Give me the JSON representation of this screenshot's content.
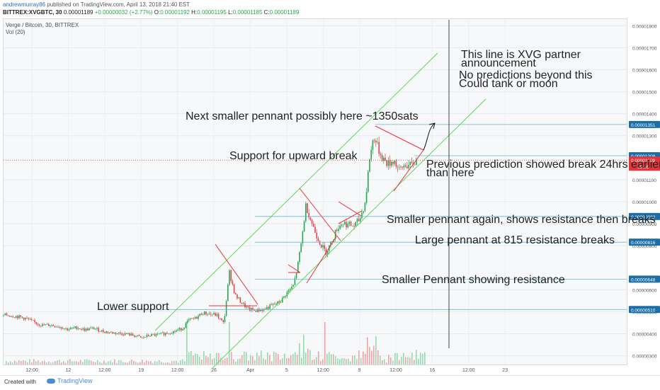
{
  "header": {
    "author": "andrewmurray86",
    "published": "published on TradingView.com, April 13, 2018 21:40 EST",
    "symbol": "BITTREX:XVGBTC, 30",
    "last": "0.00001189",
    "change": "+0.00000032 (+2.77%)",
    "o_label": "O:",
    "o": "0.00001192",
    "h_label": "H:",
    "h": "0.00001195",
    "l_label": "L:",
    "l": "0.00001185",
    "c_label": "C:",
    "c": "0.00001189"
  },
  "legend": {
    "series": "Verge / Bitcoin, 30, BITTREX",
    "volume": "Vol (20)"
  },
  "footer": {
    "created_with": "Created with",
    "brand": "TradingView"
  },
  "colors": {
    "up": "#26a84f",
    "down": "#e0464b",
    "channel": "#56d34a",
    "pennant": "#e8333a",
    "hline": "#68b8cf",
    "price_line": "#e8333a",
    "axis_label_bg": "#1b6ea8"
  },
  "annotations": [
    {
      "id": "partner",
      "text": "This line is XVG partner",
      "size": 12
    },
    {
      "id": "partner2",
      "text": "announcement",
      "size": 12
    },
    {
      "id": "nopred",
      "text": "No predictions beyond this",
      "size": 12
    },
    {
      "id": "nopred2",
      "text": "Could tank or moon",
      "size": 12
    },
    {
      "id": "next",
      "text": "Next smaller pennant possibly here ~1350sats",
      "size": 12
    },
    {
      "id": "support",
      "text": "Support for upward break",
      "size": 12
    },
    {
      "id": "prev",
      "text": "Previous prediction showed break 24hrs earlier",
      "size": 12
    },
    {
      "id": "prev2",
      "text": "than here",
      "size": 12
    },
    {
      "id": "smaller",
      "text": "Smaller pennant again, shows resistance then breaks",
      "size": 12
    },
    {
      "id": "large",
      "text": "Large pennant at 815 resistance breaks",
      "size": 12
    },
    {
      "id": "smallerres",
      "text": "Smaller Pennant showing resistance",
      "size": 12
    },
    {
      "id": "lower",
      "text": "Lower support",
      "size": 12
    }
  ],
  "chart_data": {
    "type": "candlestick",
    "title": "Verge / Bitcoin, 30, BITTREX",
    "ylim": [
      2.6e-06,
      1.83e-05
    ],
    "y_ticks": [
      "0.00001800",
      "0.00001700",
      "0.00001600",
      "0.00001500",
      "0.00001400",
      "0.00001300",
      "0.00001100",
      "0.00001000",
      "0.00000900",
      "0.00000800",
      "0.00000600",
      "0.00000500",
      "0.00000400",
      "0.00000300"
    ],
    "x_ticks": [
      "12:00",
      "12",
      "12:00",
      "19",
      "12:00",
      "26",
      "Apr",
      "5",
      "12:00",
      "9",
      "12:00",
      "16",
      "12:00",
      "23"
    ],
    "price_path": [
      [
        0,
        4.85e-06
      ],
      [
        12,
        4.84e-06
      ],
      [
        24,
        4.78e-06
      ],
      [
        36,
        4.7e-06
      ],
      [
        48,
        4.52e-06
      ],
      [
        60,
        4.38e-06
      ],
      [
        72,
        4.4e-06
      ],
      [
        84,
        4.32e-06
      ],
      [
        96,
        4.2e-06
      ],
      [
        108,
        4.28e-06
      ],
      [
        120,
        4.18e-06
      ],
      [
        132,
        4.25e-06
      ],
      [
        144,
        4.12e-06
      ],
      [
        156,
        4.05e-06
      ],
      [
        168,
        4.02e-06
      ],
      [
        180,
        3.98e-06
      ],
      [
        192,
        3.9e-06
      ],
      [
        200,
        3.8e-06
      ],
      [
        210,
        3.92e-06
      ],
      [
        222,
        3.95e-06
      ],
      [
        234,
        4.02e-06
      ],
      [
        246,
        4.1e-06
      ],
      [
        258,
        4.25e-06
      ],
      [
        266,
        4.6e-06
      ],
      [
        276,
        4.7e-06
      ],
      [
        286,
        4.95e-06
      ],
      [
        296,
        4.9e-06
      ],
      [
        306,
        4.85e-06
      ],
      [
        316,
        4.45e-06
      ],
      [
        324,
        6.8e-06
      ],
      [
        332,
        5.75e-06
      ],
      [
        340,
        5.45e-06
      ],
      [
        350,
        5.12e-06
      ],
      [
        360,
        5.05e-06
      ],
      [
        372,
        5.1e-06
      ],
      [
        384,
        5.28e-06
      ],
      [
        396,
        5.45e-06
      ],
      [
        406,
        5.9e-06
      ],
      [
        414,
        6.15e-06
      ],
      [
        420,
        7e-06
      ],
      [
        426,
        8.25e-06
      ],
      [
        432,
        9.85e-06
      ],
      [
        438,
        9.25e-06
      ],
      [
        446,
        8.55e-06
      ],
      [
        454,
        8e-06
      ],
      [
        460,
        7.7e-06
      ],
      [
        468,
        8.15e-06
      ],
      [
        476,
        8.8e-06
      ],
      [
        484,
        9.05e-06
      ],
      [
        492,
        8.95e-06
      ],
      [
        500,
        8.9e-06
      ],
      [
        508,
        9.2e-06
      ],
      [
        516,
        1e-05
      ],
      [
        522,
        1.2e-05
      ],
      [
        528,
        1.3e-05
      ],
      [
        534,
        1.24e-05
      ],
      [
        540,
        1.2e-05
      ],
      [
        548,
        1.17e-05
      ],
      [
        556,
        1.19e-05
      ],
      [
        564,
        1.14e-05
      ],
      [
        572,
        1.17e-05
      ],
      [
        580,
        1.16e-05
      ],
      [
        588,
        1.189e-05
      ]
    ],
    "volume": {
      "label": "Vol (20)"
    },
    "horizontal_lines": [
      {
        "value": 1.351e-05,
        "label": "0.00001351"
      },
      {
        "value": 1.209e-05,
        "label": "0.00001209"
      },
      {
        "value": 9.33e-06,
        "label": "0.00000933"
      },
      {
        "value": 8.16e-06,
        "label": "0.00000816"
      },
      {
        "value": 6.48e-06,
        "label": "0.00000648"
      },
      {
        "value": 5.1e-06,
        "label": "0.00000510"
      }
    ],
    "price_line": {
      "value": 1.189e-05,
      "label": "0.00001189",
      "countdown": "19:16"
    },
    "grid": true
  }
}
